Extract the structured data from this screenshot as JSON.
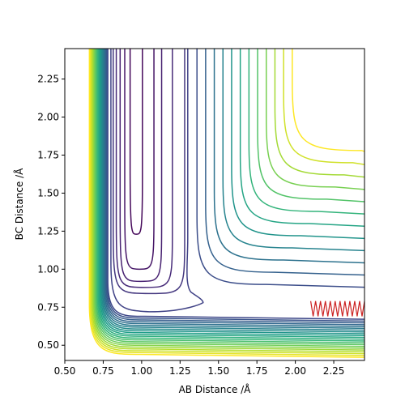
{
  "chart_data": {
    "type": "contour",
    "title": "",
    "xlabel": "AB Distance /Å",
    "ylabel": "BC Distance /Å",
    "xlim": [
      0.5,
      2.45
    ],
    "ylim": [
      0.4,
      2.45
    ],
    "xticks": [
      0.5,
      0.75,
      1.0,
      1.25,
      1.5,
      1.75,
      2.0,
      2.25
    ],
    "xtick_labels": [
      "0.50",
      "0.75",
      "1.00",
      "1.25",
      "1.50",
      "1.75",
      "2.00",
      "2.25"
    ],
    "yticks": [
      0.5,
      0.75,
      1.0,
      1.25,
      1.5,
      1.75,
      2.0,
      2.25
    ],
    "ytick_labels": [
      "0.50",
      "0.75",
      "1.00",
      "1.25",
      "1.50",
      "1.75",
      "2.00",
      "2.25"
    ],
    "grid": false,
    "colormap": "viridis",
    "contours": {
      "count": 28,
      "inner_well": {
        "r_min_x": 0.93,
        "r_min_y": 1.22
      },
      "saddle_region": {
        "x": 1.4,
        "y": 0.77
      }
    },
    "trajectory": {
      "color": "#cc2222",
      "x": [
        2.1,
        2.45
      ],
      "y_center": 0.74,
      "amplitude": 0.05
    }
  }
}
